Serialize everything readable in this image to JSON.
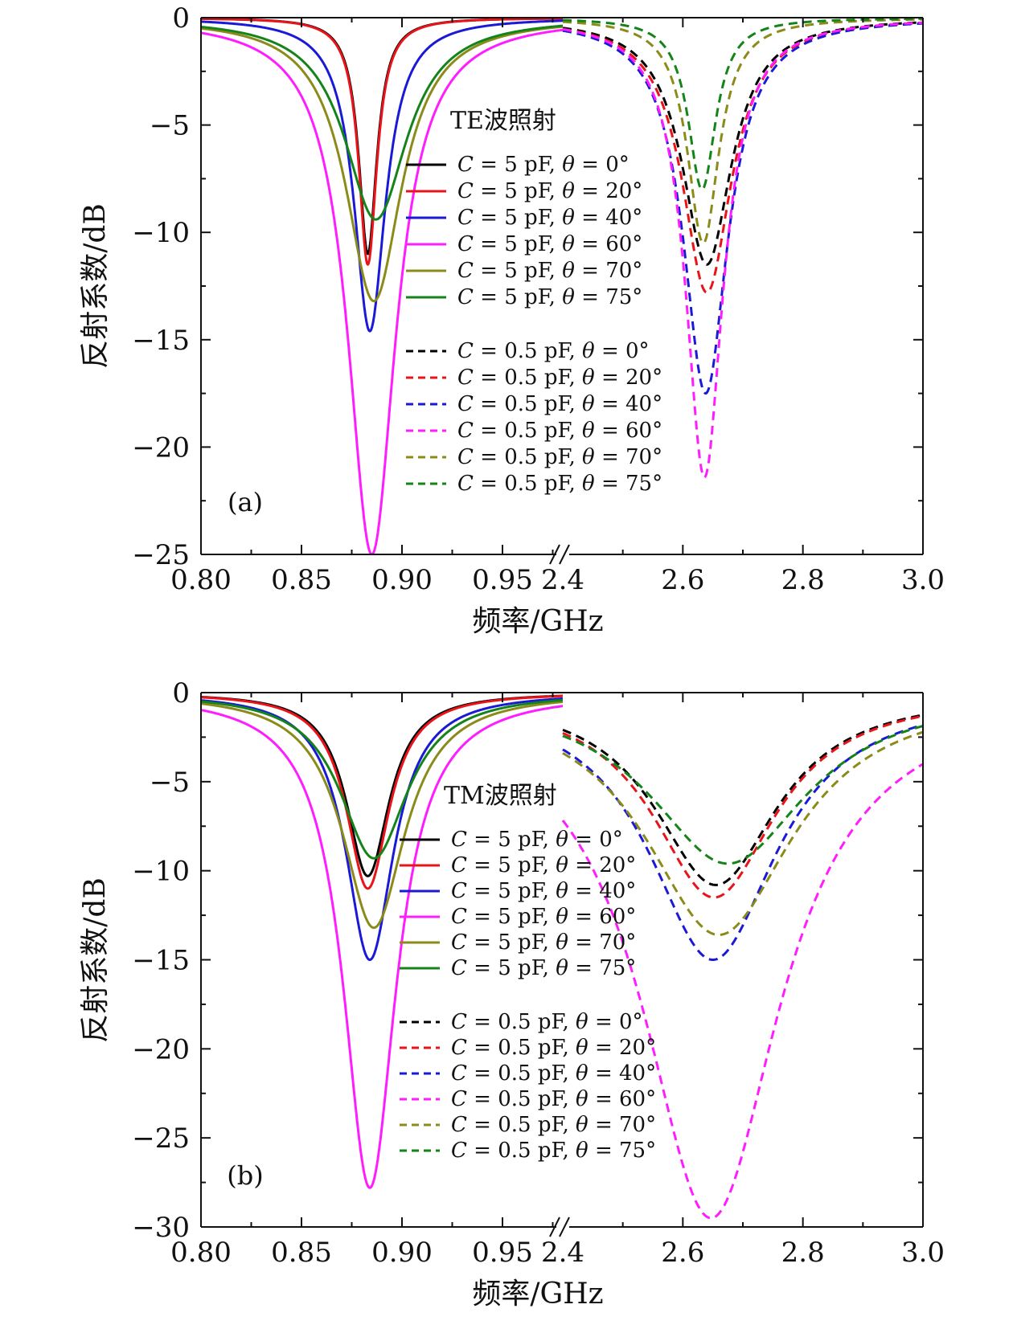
{
  "chart_data": [
    {
      "type": "line",
      "panel_label": "(a)",
      "legend_title": "TE波照射",
      "ylabel": "反射系数/dB",
      "xlabel": "频率/GHz",
      "ylim": [
        -25,
        0
      ],
      "y_ticks": [
        0,
        -5,
        -10,
        -15,
        -20,
        -25
      ],
      "y_tick_labels": [
        "0",
        "−5",
        "−10",
        "−15",
        "−20",
        "−25"
      ],
      "x_broken_axis": {
        "left_range": [
          0.8,
          0.98
        ],
        "right_range": [
          2.4,
          3.0
        ],
        "left_ticks": [
          0.8,
          0.85,
          0.9,
          0.95
        ],
        "left_tick_labels": [
          "0.80",
          "0.85",
          "0.90",
          "0.95"
        ],
        "right_ticks": [
          2.4,
          2.6,
          2.8,
          3.0
        ],
        "right_tick_labels": [
          "2.4",
          "2.6",
          "2.8",
          "3.0"
        ]
      },
      "series": [
        {
          "name": "C = 5 pF, θ = 0°",
          "legend": {
            "c": "5",
            "angle": "0°"
          },
          "color": "#000000",
          "dash": false,
          "segment": "left",
          "f0": 0.883,
          "depth": -11.0,
          "width": 0.0055
        },
        {
          "name": "C = 5 pF, θ = 20°",
          "legend": {
            "c": "5",
            "angle": "20°"
          },
          "color": "#e8141a",
          "dash": false,
          "segment": "left",
          "f0": 0.883,
          "depth": -11.5,
          "width": 0.0055
        },
        {
          "name": "C = 5 pF, θ = 40°",
          "legend": {
            "c": "5",
            "angle": "40°"
          },
          "color": "#1a1ad6",
          "dash": false,
          "segment": "left",
          "f0": 0.884,
          "depth": -14.6,
          "width": 0.0095
        },
        {
          "name": "C = 5 pF, θ = 60°",
          "legend": {
            "c": "5",
            "angle": "60°"
          },
          "color": "#ff1dff",
          "dash": false,
          "segment": "left",
          "f0": 0.885,
          "depth": -25.0,
          "width": 0.0145
        },
        {
          "name": "C = 5 pF, θ = 70°",
          "legend": {
            "c": "5",
            "angle": "70°"
          },
          "color": "#8b8b1a",
          "dash": false,
          "segment": "left",
          "f0": 0.886,
          "depth": -13.2,
          "width": 0.017
        },
        {
          "name": "C = 5 pF, θ = 75°",
          "legend": {
            "c": "5",
            "angle": "75°"
          },
          "color": "#14841a",
          "dash": false,
          "segment": "left",
          "f0": 0.887,
          "depth": -9.4,
          "width": 0.019
        },
        {
          "name": "C = 0.5 pF, θ = 0°",
          "legend": {
            "c": "0.5",
            "angle": "0°"
          },
          "color": "#000000",
          "dash": true,
          "segment": "right",
          "f0": 2.64,
          "depth": -11.5,
          "width": 0.05
        },
        {
          "name": "C = 0.5 pF, θ = 20°",
          "legend": {
            "c": "0.5",
            "angle": "20°"
          },
          "color": "#e8141a",
          "dash": true,
          "segment": "right",
          "f0": 2.64,
          "depth": -12.8,
          "width": 0.05
        },
        {
          "name": "C = 0.5 pF, θ = 40°",
          "legend": {
            "c": "0.5",
            "angle": "40°"
          },
          "color": "#1a1ad6",
          "dash": true,
          "segment": "right",
          "f0": 2.638,
          "depth": -17.5,
          "width": 0.045
        },
        {
          "name": "C = 0.5 pF, θ = 60°",
          "legend": {
            "c": "0.5",
            "angle": "60°"
          },
          "color": "#ff1dff",
          "dash": true,
          "segment": "right",
          "f0": 2.636,
          "depth": -21.4,
          "width": 0.038
        },
        {
          "name": "C = 0.5 pF, θ = 70°",
          "legend": {
            "c": "0.5",
            "angle": "70°"
          },
          "color": "#8b8b1a",
          "dash": true,
          "segment": "right",
          "f0": 2.634,
          "depth": -10.5,
          "width": 0.032
        },
        {
          "name": "C = 0.5 pF, θ = 75°",
          "legend": {
            "c": "0.5",
            "angle": "75°"
          },
          "color": "#14841a",
          "dash": true,
          "segment": "right",
          "f0": 2.632,
          "depth": -8.0,
          "width": 0.028
        }
      ]
    },
    {
      "type": "line",
      "panel_label": "(b)",
      "legend_title": "TM波照射",
      "ylabel": "反射系数/dB",
      "xlabel": "频率/GHz",
      "ylim": [
        -30,
        0
      ],
      "y_ticks": [
        0,
        -5,
        -10,
        -15,
        -20,
        -25,
        -30
      ],
      "y_tick_labels": [
        "0",
        "−5",
        "−10",
        "−15",
        "−20",
        "−25",
        "−30"
      ],
      "x_broken_axis": {
        "left_range": [
          0.8,
          0.98
        ],
        "right_range": [
          2.4,
          3.0
        ],
        "left_ticks": [
          0.8,
          0.85,
          0.9,
          0.95
        ],
        "left_tick_labels": [
          "0.80",
          "0.85",
          "0.90",
          "0.95"
        ],
        "right_ticks": [
          2.4,
          2.6,
          2.8,
          3.0
        ],
        "right_tick_labels": [
          "2.4",
          "2.6",
          "2.8",
          "3.0"
        ]
      },
      "series": [
        {
          "name": "C = 5 pF, θ = 0°",
          "legend": {
            "c": "5",
            "angle": "0°"
          },
          "color": "#000000",
          "dash": false,
          "segment": "left",
          "f0": 0.883,
          "depth": -10.3,
          "width": 0.013
        },
        {
          "name": "C = 5 pF, θ = 20°",
          "legend": {
            "c": "5",
            "angle": "20°"
          },
          "color": "#e8141a",
          "dash": false,
          "segment": "left",
          "f0": 0.883,
          "depth": -11.0,
          "width": 0.013
        },
        {
          "name": "C = 5 pF, θ = 40°",
          "legend": {
            "c": "5",
            "angle": "40°"
          },
          "color": "#1a1ad6",
          "dash": false,
          "segment": "left",
          "f0": 0.884,
          "depth": -15.0,
          "width": 0.0145
        },
        {
          "name": "C = 5 pF, θ = 60°",
          "legend": {
            "c": "5",
            "angle": "60°"
          },
          "color": "#ff1dff",
          "dash": false,
          "segment": "left",
          "f0": 0.884,
          "depth": -27.8,
          "width": 0.016
        },
        {
          "name": "C = 5 pF, θ = 70°",
          "legend": {
            "c": "5",
            "angle": "70°"
          },
          "color": "#8b8b1a",
          "dash": false,
          "segment": "left",
          "f0": 0.886,
          "depth": -13.2,
          "width": 0.019
        },
        {
          "name": "C = 5 pF, θ = 75°",
          "legend": {
            "c": "5",
            "angle": "75°"
          },
          "color": "#14841a",
          "dash": false,
          "segment": "left",
          "f0": 0.886,
          "depth": -9.3,
          "width": 0.0205
        },
        {
          "name": "C = 0.5 pF, θ = 0°",
          "legend": {
            "c": "0.5",
            "angle": "0°"
          },
          "color": "#000000",
          "dash": true,
          "segment": "right",
          "f0": 2.655,
          "depth": -10.8,
          "width": 0.125
        },
        {
          "name": "C = 0.5 pF, θ = 20°",
          "legend": {
            "c": "0.5",
            "angle": "20°"
          },
          "color": "#e8141a",
          "dash": true,
          "segment": "right",
          "f0": 2.652,
          "depth": -11.5,
          "width": 0.125
        },
        {
          "name": "C = 0.5 pF, θ = 40°",
          "legend": {
            "c": "0.5",
            "angle": "40°"
          },
          "color": "#1a1ad6",
          "dash": true,
          "segment": "right",
          "f0": 2.65,
          "depth": -15.0,
          "width": 0.13
        },
        {
          "name": "C = 0.5 pF, θ = 60°",
          "legend": {
            "c": "0.5",
            "angle": "60°"
          },
          "color": "#ff1dff",
          "dash": true,
          "segment": "right",
          "f0": 2.647,
          "depth": -29.5,
          "width": 0.14
        },
        {
          "name": "C = 0.5 pF, θ = 70°",
          "legend": {
            "c": "0.5",
            "angle": "70°"
          },
          "color": "#8b8b1a",
          "dash": true,
          "segment": "right",
          "f0": 2.66,
          "depth": -13.6,
          "width": 0.15
        },
        {
          "name": "C = 0.5 pF, θ = 75°",
          "legend": {
            "c": "0.5",
            "angle": "75°"
          },
          "color": "#14841a",
          "dash": true,
          "segment": "right",
          "f0": 2.675,
          "depth": -9.6,
          "width": 0.16
        }
      ]
    }
  ]
}
